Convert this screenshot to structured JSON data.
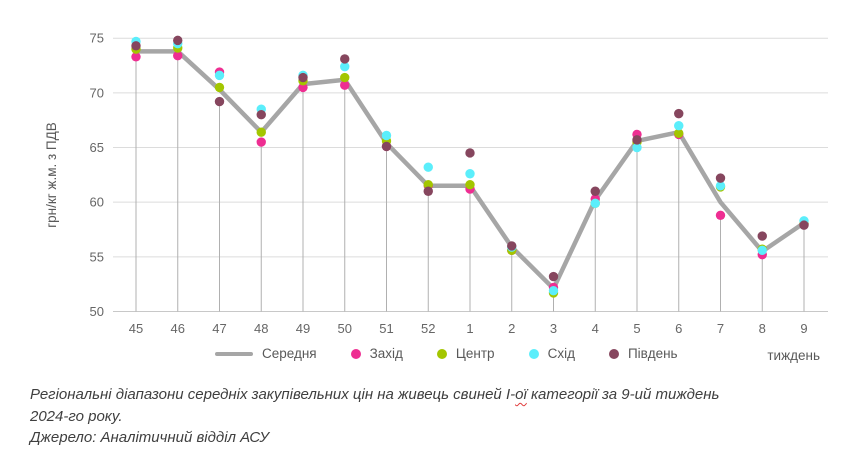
{
  "chart_data": {
    "type": "line",
    "title": "",
    "xlabel": "тиждень",
    "ylabel": "грн/кг ж.м. з ПДВ",
    "ylim": [
      50,
      75
    ],
    "yticks": [
      50,
      55,
      60,
      65,
      70,
      75
    ],
    "grid": true,
    "legend_position": "bottom",
    "categories": [
      "45",
      "46",
      "47",
      "48",
      "49",
      "50",
      "51",
      "52",
      "1",
      "2",
      "3",
      "4",
      "5",
      "6",
      "7",
      "8",
      "9"
    ],
    "series": [
      {
        "name": "Середня",
        "style": "line",
        "color": "#a6a6a6",
        "values": [
          73.8,
          73.8,
          70.3,
          66.4,
          70.8,
          71.2,
          65.4,
          61.5,
          61.5,
          55.9,
          52.1,
          60.2,
          65.6,
          66.4,
          60.0,
          55.5,
          58.1
        ]
      },
      {
        "name": "Захід",
        "style": "scatter",
        "color": "#ee2e92",
        "values": [
          73.3,
          73.4,
          71.9,
          65.5,
          70.5,
          70.7,
          65.1,
          61.5,
          61.2,
          55.6,
          52.2,
          60.3,
          66.2,
          66.2,
          58.8,
          55.2,
          58.0
        ]
      },
      {
        "name": "Центр",
        "style": "scatter",
        "color": "#a3c600",
        "values": [
          74.0,
          74.1,
          70.5,
          66.4,
          71.1,
          71.4,
          65.6,
          61.6,
          61.6,
          55.6,
          51.7,
          59.9,
          65.5,
          66.3,
          61.4,
          55.7,
          58.0
        ]
      },
      {
        "name": "Схід",
        "style": "scatter",
        "color": "#5beefb",
        "values": [
          74.7,
          74.5,
          71.6,
          68.5,
          71.6,
          72.4,
          66.1,
          63.2,
          62.6,
          55.9,
          51.9,
          59.9,
          65.0,
          67.0,
          61.5,
          55.6,
          58.3
        ]
      },
      {
        "name": "Південь",
        "style": "scatter",
        "color": "#86465e",
        "values": [
          74.3,
          74.8,
          69.2,
          68.0,
          71.4,
          73.1,
          65.1,
          61.0,
          64.5,
          56.0,
          53.2,
          61.0,
          65.7,
          68.1,
          62.2,
          56.9,
          57.9
        ]
      }
    ],
    "colors": {
      "gridline": "#dcdcdc",
      "axis_line": "#c8c8c8",
      "drop_line": "#b0b0b0",
      "tick_text": "#666666",
      "axis_title_text": "#595959"
    }
  },
  "caption": {
    "part1": "Регіональні діапазони середніх закупівельних цін на живець свиней І-",
    "misspelled": "ої",
    "part2": " категорії за 9-ий тиждень",
    "line2": "2024-го року.",
    "source": "Джерело: Аналітичний відділ АСУ"
  }
}
